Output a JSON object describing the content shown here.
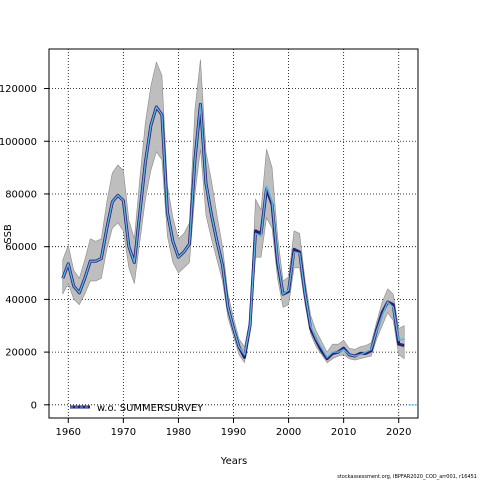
{
  "chart_data": {
    "type": "line",
    "xlabel": "Years",
    "ylabel": "SSB",
    "xlim": [
      1956.5,
      2023.5
    ],
    "ylim": [
      -5000,
      135000
    ],
    "x_ticks": [
      1960,
      1970,
      1980,
      1990,
      2000,
      2010,
      2020
    ],
    "x_tick_labels": [
      "1960",
      "1970",
      "1980",
      "1990",
      "2000",
      "2010",
      "2020"
    ],
    "y_ticks": [
      0,
      20000,
      40000,
      60000,
      80000,
      100000,
      120000
    ],
    "y_tick_labels": [
      "0",
      "20000",
      "40000",
      "60000",
      "80000",
      "100000",
      "120000"
    ],
    "grid": true,
    "legend_placement": "bottom-left",
    "footer": "stockassessment.org, IBPFAR2020_COD_arr001, r16451",
    "colors": {
      "band": "#bebebe",
      "reference_line": "#2b1f6e",
      "series_line": "#56b4e9"
    },
    "series": [
      {
        "name": "w.o. SUMMERSURVEY",
        "x": [
          1959,
          1960,
          1961,
          1962,
          1963,
          1964,
          1965,
          1966,
          1967,
          1968,
          1969,
          1970,
          1971,
          1972,
          1973,
          1974,
          1975,
          1976,
          1977,
          1978,
          1979,
          1980,
          1981,
          1982,
          1983,
          1984,
          1985,
          1986,
          1987,
          1988,
          1989,
          1990,
          1991,
          1992,
          1993,
          1994,
          1995,
          1996,
          1997,
          1998,
          1999,
          2000,
          2001,
          2002,
          2003,
          2004,
          2005,
          2006,
          2007,
          2008,
          2009,
          2010,
          2011,
          2012,
          2013,
          2014,
          2015,
          2016,
          2017,
          2018,
          2019,
          2020,
          2021
        ],
        "values": [
          48000,
          53500,
          45000,
          42500,
          48000,
          54500,
          54500,
          55500,
          67000,
          77000,
          79500,
          77500,
          60000,
          54000,
          73000,
          92000,
          106000,
          113000,
          110000,
          73000,
          62000,
          56000,
          58000,
          61000,
          93000,
          114000,
          84000,
          72000,
          62000,
          53000,
          37000,
          29000,
          22000,
          19000,
          30000,
          65000,
          64000,
          83000,
          77000,
          55000,
          42000,
          43500,
          58000,
          57500,
          42000,
          30000,
          25000,
          21500,
          18000,
          20000,
          20000,
          21000,
          19000,
          18500,
          19000,
          20000,
          21000,
          28000,
          34000,
          39000,
          37000,
          24500,
          25000
        ]
      }
    ],
    "reference_line": {
      "x": [
        1959,
        1960,
        1961,
        1962,
        1963,
        1964,
        1965,
        1966,
        1967,
        1968,
        1969,
        1970,
        1971,
        1972,
        1973,
        1974,
        1975,
        1976,
        1977,
        1978,
        1979,
        1980,
        1981,
        1982,
        1983,
        1984,
        1985,
        1986,
        1987,
        1988,
        1989,
        1990,
        1991,
        1992,
        1993,
        1994,
        1995,
        1996,
        1997,
        1998,
        1999,
        2000,
        2001,
        2002,
        2003,
        2004,
        2005,
        2006,
        2007,
        2008,
        2009,
        2010,
        2011,
        2012,
        2013,
        2014,
        2015,
        2016,
        2017,
        2018,
        2019,
        2020,
        2021
      ],
      "values": [
        48000,
        53500,
        45000,
        42500,
        48000,
        54500,
        54500,
        55500,
        67000,
        77000,
        79500,
        77500,
        60000,
        54000,
        73000,
        92000,
        106000,
        113000,
        110000,
        73000,
        62000,
        56000,
        58000,
        61000,
        93000,
        114000,
        84000,
        72000,
        62000,
        53000,
        37000,
        29000,
        22000,
        18000,
        30000,
        66000,
        65000,
        82000,
        76000,
        54000,
        42000,
        43000,
        59000,
        58000,
        42000,
        29000,
        24500,
        20500,
        17500,
        19500,
        20000,
        21500,
        19000,
        18500,
        19500,
        19500,
        20500,
        28500,
        35000,
        39000,
        38000,
        23000,
        22500
      ]
    },
    "band": {
      "x": [
        1959,
        1960,
        1961,
        1962,
        1963,
        1964,
        1965,
        1966,
        1967,
        1968,
        1969,
        1970,
        1971,
        1972,
        1973,
        1974,
        1975,
        1976,
        1977,
        1978,
        1979,
        1980,
        1981,
        1982,
        1983,
        1984,
        1985,
        1986,
        1987,
        1988,
        1989,
        1990,
        1991,
        1992,
        1993,
        1994,
        1995,
        1996,
        1997,
        1998,
        1999,
        2000,
        2001,
        2002,
        2003,
        2004,
        2005,
        2006,
        2007,
        2008,
        2009,
        2010,
        2011,
        2012,
        2013,
        2014,
        2015,
        2016,
        2017,
        2018,
        2019,
        2020,
        2021
      ],
      "lower": [
        42000,
        46000,
        40000,
        38000,
        42000,
        47000,
        47000,
        48000,
        59000,
        67000,
        69000,
        66000,
        52000,
        46000,
        62000,
        78000,
        89000,
        96000,
        93000,
        64000,
        54000,
        50000,
        52000,
        54000,
        80000,
        97000,
        72000,
        63000,
        55000,
        47000,
        33000,
        26000,
        19000,
        16000,
        28000,
        56000,
        56000,
        71000,
        67000,
        48000,
        37000,
        38000,
        52000,
        52000,
        38000,
        27000,
        22000,
        19000,
        16000,
        17500,
        18500,
        19000,
        17500,
        17000,
        17500,
        18000,
        18500,
        25000,
        30000,
        35000,
        32000,
        19000,
        17500
      ],
      "upper": [
        55000,
        60500,
        51000,
        48000,
        55000,
        63000,
        62000,
        63000,
        77000,
        88000,
        91000,
        89000,
        70000,
        63000,
        86000,
        107000,
        121000,
        130000,
        125000,
        83000,
        71000,
        63000,
        65000,
        69000,
        112000,
        131000,
        96000,
        85000,
        72000,
        60000,
        42000,
        33000,
        25000,
        22000,
        33000,
        78000,
        74000,
        97000,
        90000,
        64000,
        47000,
        48500,
        66000,
        65000,
        47000,
        34000,
        28000,
        24000,
        20000,
        23000,
        23000,
        24500,
        21500,
        21000,
        22000,
        22500,
        23500,
        31500,
        39000,
        44000,
        42000,
        29000,
        30000
      ]
    }
  }
}
